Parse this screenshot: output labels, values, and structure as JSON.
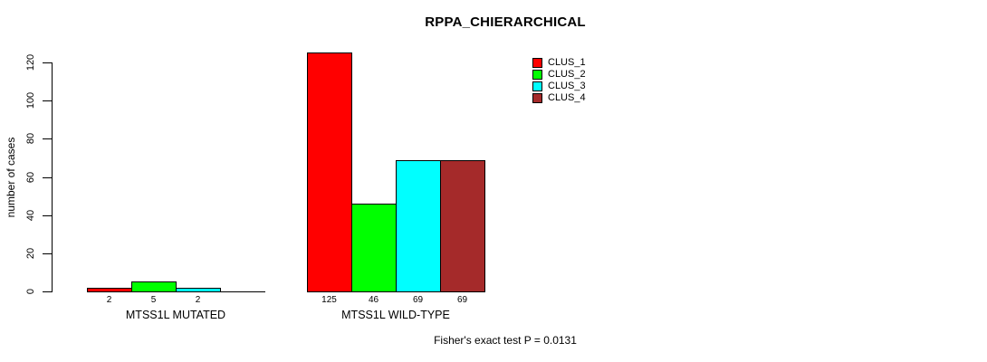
{
  "title": "RPPA_CHIERARCHICAL",
  "footer": "Fisher's exact test P = 0.0131",
  "chart_data": {
    "type": "bar",
    "title": "RPPA_CHIERARCHICAL",
    "xlabel": "",
    "ylabel": "number of cases",
    "ylim": [
      0,
      120
    ],
    "yticks": [
      0,
      20,
      40,
      60,
      80,
      100,
      120
    ],
    "grid": false,
    "bar_style": "grouped",
    "legend_position": "top-right-inside",
    "series": [
      "CLUS_1",
      "CLUS_2",
      "CLUS_3",
      "CLUS_4"
    ],
    "colors": [
      "#ff0000",
      "#00ff00",
      "#00ffff",
      "#a52a2a"
    ],
    "categories": [
      "MTSS1L MUTATED",
      "MTSS1L WILD-TYPE"
    ],
    "groups": [
      {
        "label": "MTSS1L MUTATED",
        "values": [
          2,
          5,
          2,
          0
        ],
        "bar_labels": [
          "2",
          "5",
          "2",
          ""
        ]
      },
      {
        "label": "MTSS1L WILD-TYPE",
        "values": [
          125,
          46,
          69,
          69
        ],
        "bar_labels": [
          "125",
          "46",
          "69",
          "69"
        ]
      }
    ],
    "annotation": "Fisher's exact test P = 0.0131"
  }
}
